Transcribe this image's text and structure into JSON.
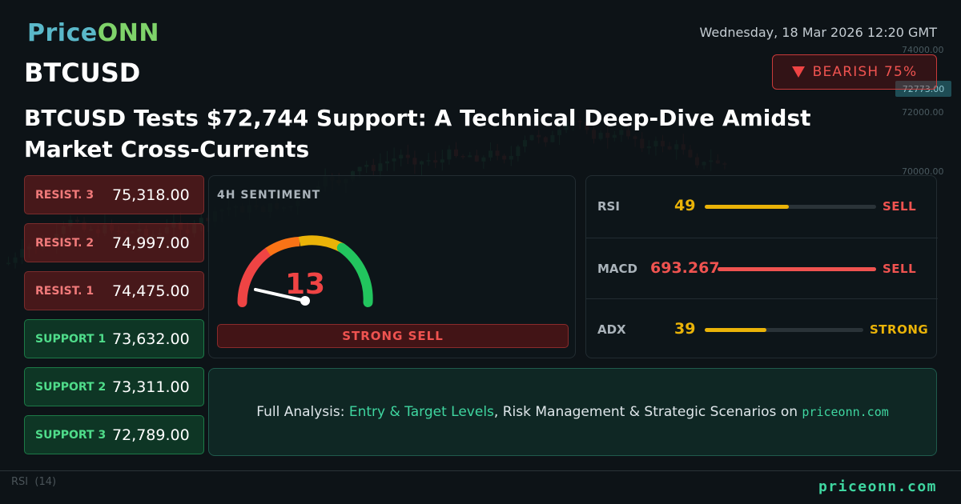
{
  "brand": {
    "name_part1": "Price",
    "name_part2": "ONN"
  },
  "datetime": "Wednesday, 18 Mar 2026 12:20 GMT",
  "symbol": "BTCUSD",
  "bias": {
    "label": "BEARISH 75%",
    "color": "#ef4444"
  },
  "headline": "BTCUSD Tests $72,744 Support: A Technical Deep-Dive Amidst Market Cross-Currents",
  "levels": [
    {
      "label": "RESIST. 3",
      "value": "75,318.00",
      "kind": "resistance"
    },
    {
      "label": "RESIST. 2",
      "value": "74,997.00",
      "kind": "resistance"
    },
    {
      "label": "RESIST. 1",
      "value": "74,475.00",
      "kind": "resistance"
    },
    {
      "label": "SUPPORT 1",
      "value": "73,632.00",
      "kind": "support"
    },
    {
      "label": "SUPPORT 2",
      "value": "73,311.00",
      "kind": "support"
    },
    {
      "label": "SUPPORT 3",
      "value": "72,789.00",
      "kind": "support"
    }
  ],
  "sentiment": {
    "title": "4H SENTIMENT",
    "score": "13",
    "score_value": 13,
    "label": "STRONG SELL"
  },
  "indicators": [
    {
      "name": "RSI",
      "value": "49",
      "fill": 0.49,
      "signal": "SELL",
      "value_color": "#eab308",
      "bar_color": "#eab308",
      "signal_color": "#ef5350"
    },
    {
      "name": "MACD",
      "value": "693.267",
      "fill": 1.0,
      "signal": "SELL",
      "value_color": "#ef5350",
      "bar_color": "#ef5350",
      "signal_color": "#ef5350"
    },
    {
      "name": "ADX",
      "value": "39",
      "fill": 0.39,
      "signal": "STRONG",
      "value_color": "#eab308",
      "bar_color": "#eab308",
      "signal_color": "#eab308"
    }
  ],
  "cta": {
    "prefix": "Full Analysis: ",
    "highlight": "Entry & Target Levels",
    "middle": ", Risk Management & Strategic Scenarios on ",
    "site": "priceonn.com"
  },
  "footer": {
    "site": "priceonn.com",
    "rsi_label": "RSI",
    "rsi_period": "(14)"
  },
  "chart_bg": {
    "price_tag": "72773.00",
    "axis_labels": [
      "74000.00",
      "72000.00",
      "70000.00"
    ]
  }
}
